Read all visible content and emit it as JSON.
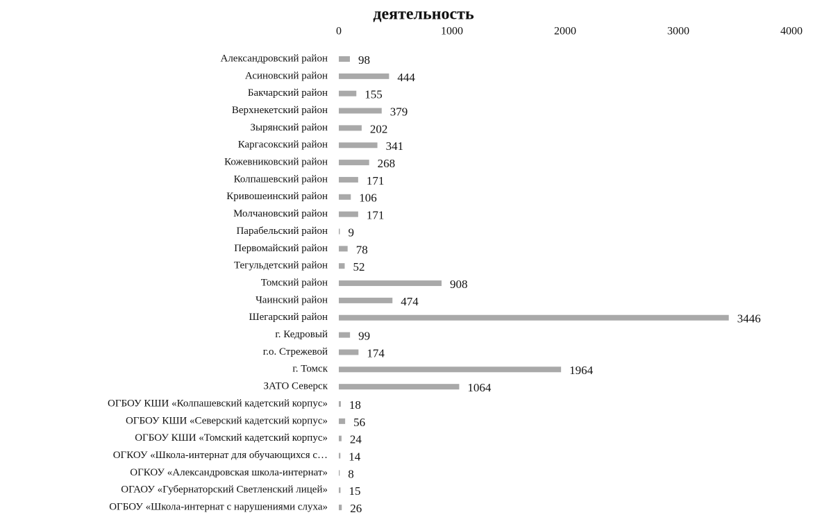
{
  "chart_data": {
    "type": "bar",
    "orientation": "horizontal",
    "title": "деятельность",
    "categories": [
      "Александровский район",
      "Асиновский район",
      "Бакчарский район",
      "Верхнекетский район",
      "Зырянский район",
      "Каргасокский район",
      "Кожевниковский район",
      "Колпашевский район",
      "Кривошеинский район",
      "Молчановский район",
      "Парабельский район",
      "Первомайский район",
      "Тегульдетский район",
      "Томский район",
      "Чаинский район",
      "Шегарский район",
      "г. Кедровый",
      "г.о. Стрежевой",
      "г. Томск",
      "ЗАТО Северск",
      "ОГБОУ КШИ «Колпашевский кадетский корпус»",
      "ОГБОУ КШИ «Северский кадетский корпус»",
      "ОГБОУ КШИ «Томский кадетский корпус»",
      "ОГКОУ «Школа-интернат для обучающихся с…",
      "ОГКОУ «Александровская школа-интернат»",
      "ОГАОУ «Губернаторский Светленский лицей»",
      "ОГБОУ «Школа-интернат с нарушениями слуха»"
    ],
    "values": [
      98,
      444,
      155,
      379,
      202,
      341,
      268,
      171,
      106,
      171,
      9,
      78,
      52,
      908,
      474,
      3446,
      99,
      174,
      1964,
      1064,
      18,
      56,
      24,
      14,
      8,
      15,
      26
    ],
    "color": "#a9a9a9",
    "xlim": [
      0,
      4000
    ],
    "xticks": [
      0,
      1000,
      2000,
      3000,
      4000
    ],
    "grid": false
  }
}
